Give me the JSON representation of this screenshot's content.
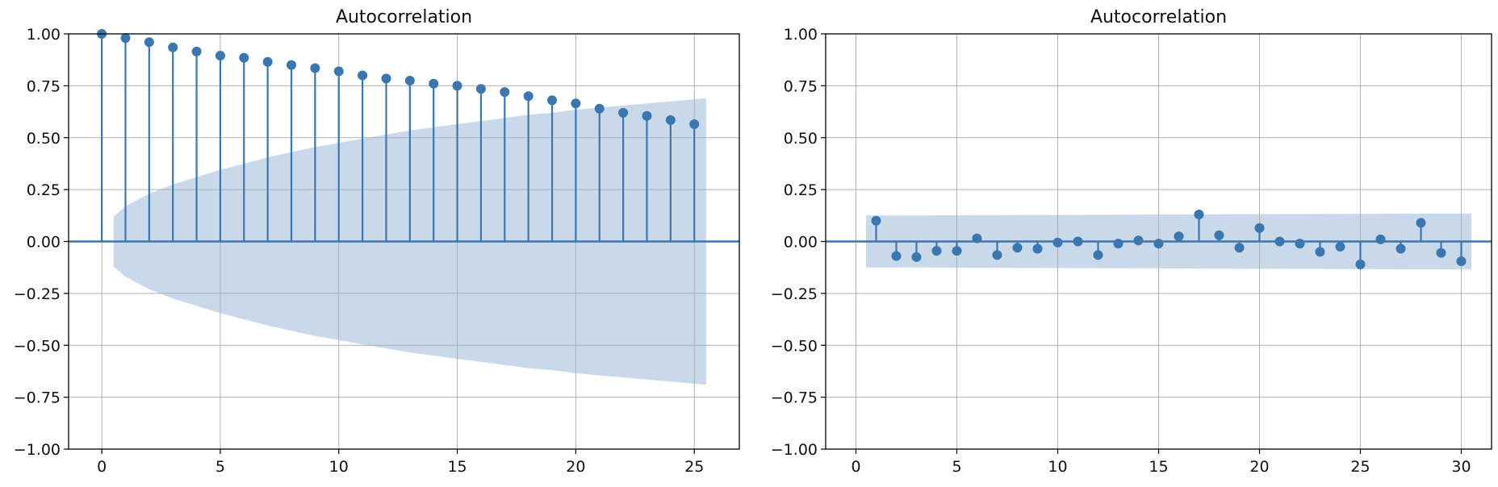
{
  "chart_data": [
    {
      "type": "stem",
      "title": "Autocorrelation",
      "xlabel": "",
      "ylabel": "",
      "xlim": [
        -1.4,
        26.9
      ],
      "ylim": [
        -1.0,
        1.0
      ],
      "xticks": [
        0,
        5,
        10,
        15,
        20,
        25
      ],
      "yticks": [
        -1.0,
        -0.75,
        -0.5,
        -0.25,
        0.0,
        0.25,
        0.5,
        0.75,
        1.0
      ],
      "ytick_labels": [
        "−1.00",
        "−0.75",
        "−0.50",
        "−0.25",
        "0.00",
        "0.25",
        "0.50",
        "0.75",
        "1.00"
      ],
      "grid": true,
      "x": [
        0,
        1,
        2,
        3,
        4,
        5,
        6,
        7,
        8,
        9,
        10,
        11,
        12,
        13,
        14,
        15,
        16,
        17,
        18,
        19,
        20,
        21,
        22,
        23,
        24,
        25
      ],
      "values": [
        1.0,
        0.98,
        0.96,
        0.935,
        0.915,
        0.895,
        0.885,
        0.865,
        0.85,
        0.835,
        0.82,
        0.8,
        0.785,
        0.775,
        0.76,
        0.75,
        0.735,
        0.72,
        0.7,
        0.68,
        0.665,
        0.64,
        0.62,
        0.605,
        0.585,
        0.565
      ],
      "confidence_band": {
        "x": [
          0.5,
          1,
          2,
          3,
          4,
          5,
          6,
          7,
          8,
          9,
          10,
          11,
          12,
          13,
          14,
          15,
          16,
          17,
          18,
          19,
          20,
          21,
          22,
          23,
          24,
          25,
          25.5
        ],
        "upper": [
          0.12,
          0.17,
          0.23,
          0.275,
          0.31,
          0.345,
          0.375,
          0.405,
          0.43,
          0.455,
          0.475,
          0.495,
          0.515,
          0.535,
          0.55,
          0.565,
          0.58,
          0.595,
          0.61,
          0.62,
          0.635,
          0.645,
          0.655,
          0.665,
          0.675,
          0.685,
          0.69
        ]
      }
    },
    {
      "type": "stem",
      "title": "Autocorrelation",
      "xlabel": "",
      "ylabel": "",
      "xlim": [
        -1.5,
        31.5
      ],
      "ylim": [
        -1.0,
        1.0
      ],
      "xticks": [
        0,
        5,
        10,
        15,
        20,
        25,
        30
      ],
      "yticks": [
        -1.0,
        -0.75,
        -0.5,
        -0.25,
        0.0,
        0.25,
        0.5,
        0.75,
        1.0
      ],
      "ytick_labels": [
        "−1.00",
        "−0.75",
        "−0.50",
        "−0.25",
        "0.00",
        "0.25",
        "0.50",
        "0.75",
        "1.00"
      ],
      "grid": true,
      "x": [
        1,
        2,
        3,
        4,
        5,
        6,
        7,
        8,
        9,
        10,
        11,
        12,
        13,
        14,
        15,
        16,
        17,
        18,
        19,
        20,
        21,
        22,
        23,
        24,
        25,
        26,
        27,
        28,
        29,
        30
      ],
      "values": [
        0.1,
        -0.07,
        -0.075,
        -0.045,
        -0.045,
        0.015,
        -0.065,
        -0.03,
        -0.035,
        -0.005,
        0.0,
        -0.065,
        -0.01,
        0.005,
        -0.01,
        0.025,
        0.13,
        0.03,
        -0.03,
        0.065,
        0.0,
        -0.01,
        -0.05,
        -0.025,
        -0.11,
        0.01,
        -0.035,
        0.09,
        -0.055,
        -0.095
      ],
      "confidence_band": {
        "x": [
          0.5,
          30.5
        ],
        "upper": [
          0.125,
          0.135
        ]
      }
    }
  ],
  "colors": {
    "stem": "#3a76af",
    "band": "#c9d9ea",
    "grid": "#b0b0b0",
    "axes": "#000000"
  }
}
